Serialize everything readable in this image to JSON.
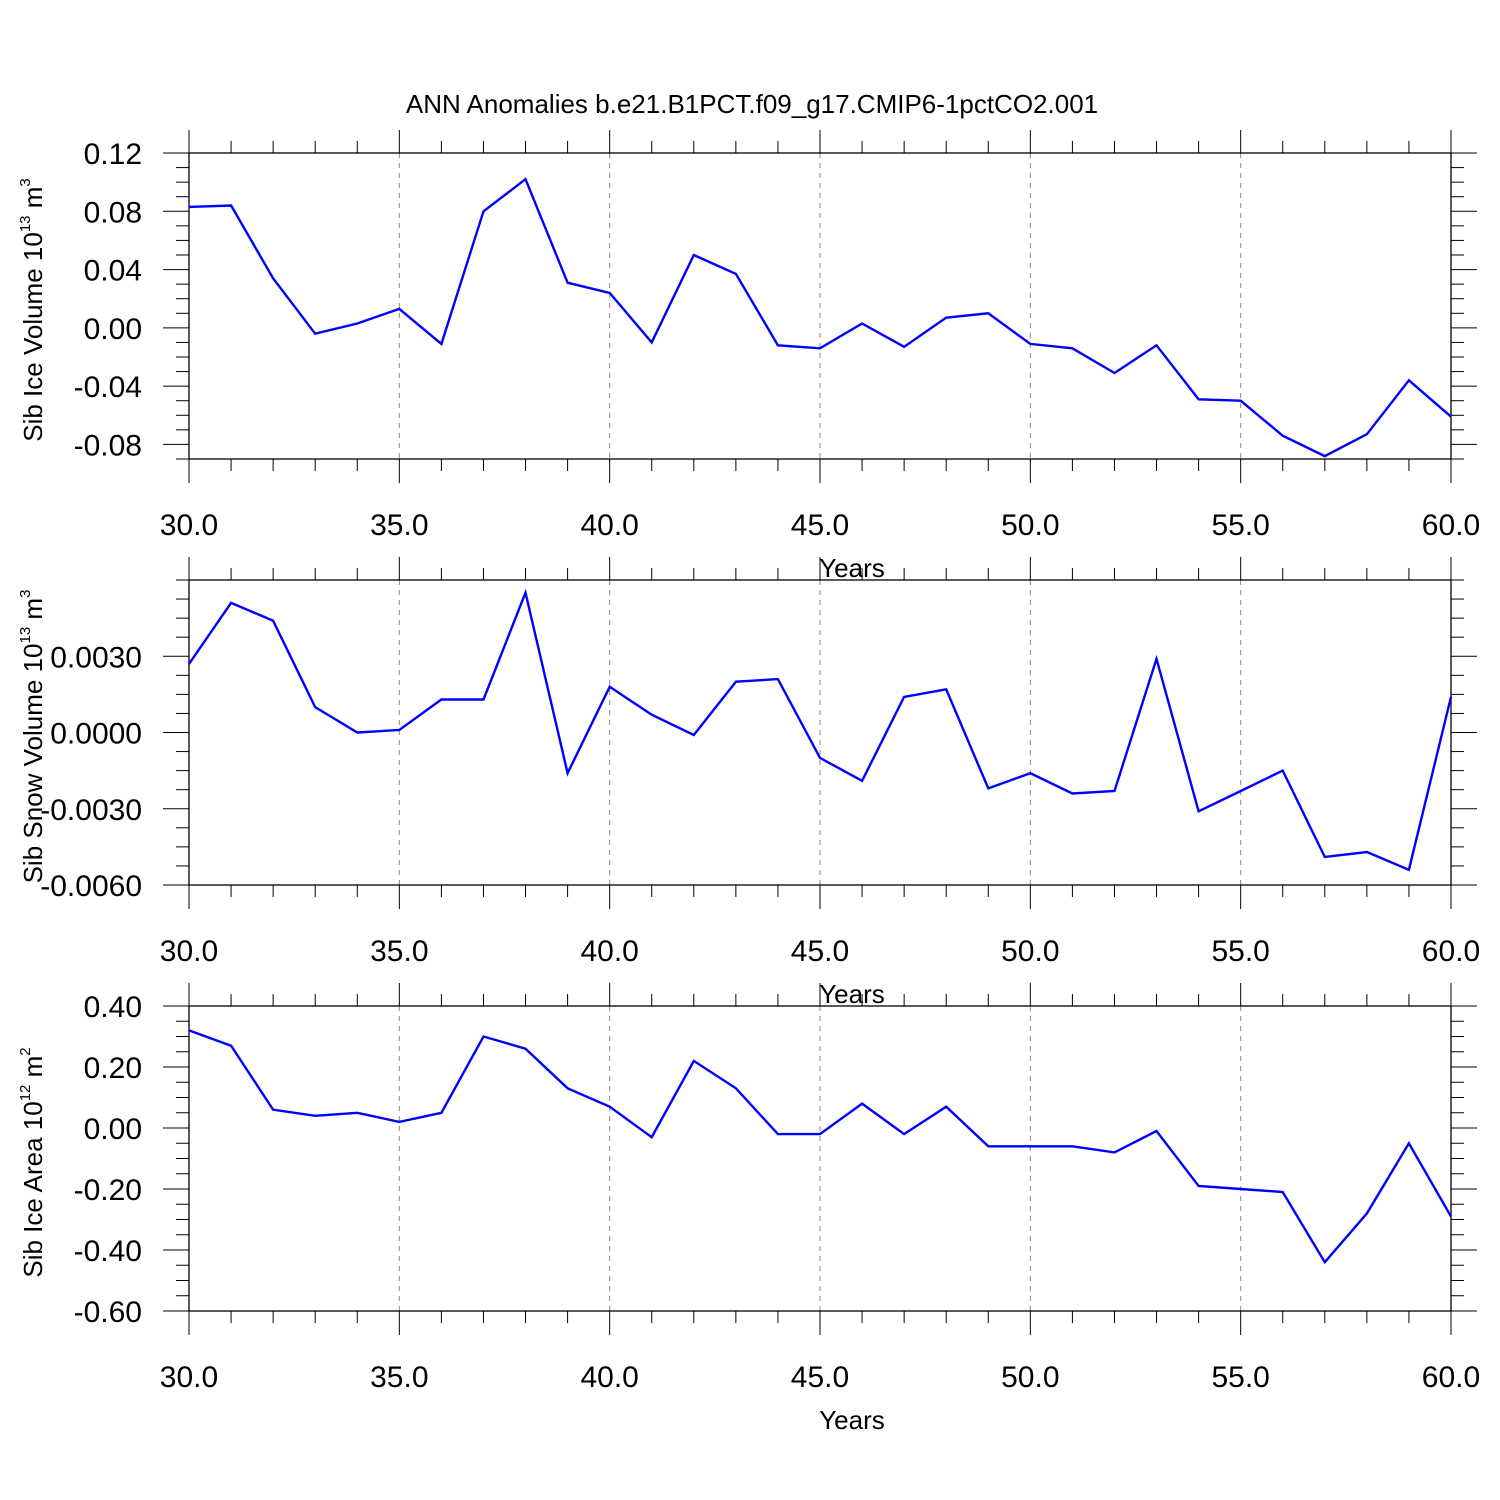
{
  "title": "ANN Anomalies b.e21.B1PCT.f09_g17.CMIP6-1pctCO2.001",
  "colors": {
    "line": "#0000ff",
    "grid": "#888888",
    "axis": "#000000",
    "background": "#ffffff"
  },
  "chart_data": [
    {
      "type": "line",
      "ylabel": {
        "main": "Sib Ice Volume 10",
        "exp": "13",
        "unit": " m",
        "unit_exp": "3"
      },
      "xlabel": "Years",
      "xlim": [
        30,
        60
      ],
      "ylim": [
        -0.09,
        0.12
      ],
      "xticks": [
        "30.0",
        "35.0",
        "40.0",
        "45.0",
        "50.0",
        "55.0",
        "60.0"
      ],
      "yticks": [
        {
          "v": 0.12,
          "label": "0.12"
        },
        {
          "v": 0.08,
          "label": "0.08"
        },
        {
          "v": 0.04,
          "label": "0.04"
        },
        {
          "v": 0.0,
          "label": "0.00"
        },
        {
          "v": -0.04,
          "label": "-0.04"
        },
        {
          "v": -0.08,
          "label": "-0.08"
        }
      ],
      "grid": "vertical dashed",
      "x": [
        30,
        31,
        32,
        33,
        34,
        35,
        36,
        37,
        38,
        39,
        40,
        41,
        42,
        43,
        44,
        45,
        46,
        47,
        48,
        49,
        50,
        51,
        52,
        53,
        54,
        55,
        56,
        57,
        58,
        59,
        60
      ],
      "values": [
        0.083,
        0.084,
        0.034,
        -0.004,
        0.003,
        0.013,
        -0.011,
        0.08,
        0.102,
        0.031,
        0.024,
        -0.01,
        0.05,
        0.037,
        -0.012,
        -0.014,
        0.003,
        -0.013,
        0.007,
        0.01,
        -0.011,
        -0.014,
        -0.031,
        -0.012,
        -0.049,
        -0.05,
        -0.074,
        -0.088,
        -0.073,
        -0.036,
        -0.061
      ]
    },
    {
      "type": "line",
      "ylabel": {
        "main": "Sib Snow Volume 10",
        "exp": "13",
        "unit": " m",
        "unit_exp": "3"
      },
      "xlabel": "Years",
      "xlim": [
        30,
        60
      ],
      "ylim": [
        -0.006,
        0.006
      ],
      "xticks": [
        "30.0",
        "35.0",
        "40.0",
        "45.0",
        "50.0",
        "55.0",
        "60.0"
      ],
      "yticks": [
        {
          "v": 0.003,
          "label": "0.0030"
        },
        {
          "v": 0.0,
          "label": "0.0000"
        },
        {
          "v": -0.003,
          "label": "-0.0030"
        },
        {
          "v": -0.006,
          "label": "-0.0060"
        }
      ],
      "grid": "vertical dashed",
      "x": [
        30,
        31,
        32,
        33,
        34,
        35,
        36,
        37,
        38,
        39,
        40,
        41,
        42,
        43,
        44,
        45,
        46,
        47,
        48,
        49,
        50,
        51,
        52,
        53,
        54,
        55,
        56,
        57,
        58,
        59,
        60
      ],
      "values": [
        0.0027,
        0.0051,
        0.0044,
        0.001,
        0.0,
        0.0001,
        0.0013,
        0.0013,
        0.0055,
        -0.0016,
        0.0018,
        0.0007,
        -0.0001,
        0.002,
        0.0021,
        -0.001,
        -0.0019,
        0.0014,
        0.0017,
        -0.0022,
        -0.0016,
        -0.0024,
        -0.0023,
        0.0029,
        -0.0031,
        -0.0023,
        -0.0015,
        -0.0049,
        -0.0047,
        -0.0054,
        0.0014
      ]
    },
    {
      "type": "line",
      "ylabel": {
        "main": "Sib Ice Area 10",
        "exp": "12",
        "unit": " m",
        "unit_exp": "2"
      },
      "xlabel": "Years",
      "xlim": [
        30,
        60
      ],
      "ylim": [
        -0.6,
        0.4
      ],
      "xticks": [
        "30.0",
        "35.0",
        "40.0",
        "45.0",
        "50.0",
        "55.0",
        "60.0"
      ],
      "yticks": [
        {
          "v": 0.4,
          "label": "0.40"
        },
        {
          "v": 0.2,
          "label": "0.20"
        },
        {
          "v": 0.0,
          "label": "0.00"
        },
        {
          "v": -0.2,
          "label": "-0.20"
        },
        {
          "v": -0.4,
          "label": "-0.40"
        },
        {
          "v": -0.6,
          "label": "-0.60"
        }
      ],
      "grid": "vertical dashed",
      "x": [
        30,
        31,
        32,
        33,
        34,
        35,
        36,
        37,
        38,
        39,
        40,
        41,
        42,
        43,
        44,
        45,
        46,
        47,
        48,
        49,
        50,
        51,
        52,
        53,
        54,
        55,
        56,
        57,
        58,
        59,
        60
      ],
      "values": [
        0.32,
        0.27,
        0.06,
        0.04,
        0.05,
        0.02,
        0.05,
        0.3,
        0.26,
        0.13,
        0.07,
        -0.03,
        0.22,
        0.13,
        -0.02,
        -0.02,
        0.08,
        -0.02,
        0.07,
        -0.06,
        -0.06,
        -0.06,
        -0.08,
        -0.01,
        -0.19,
        -0.2,
        -0.21,
        -0.44,
        -0.28,
        -0.05,
        -0.29
      ]
    }
  ]
}
